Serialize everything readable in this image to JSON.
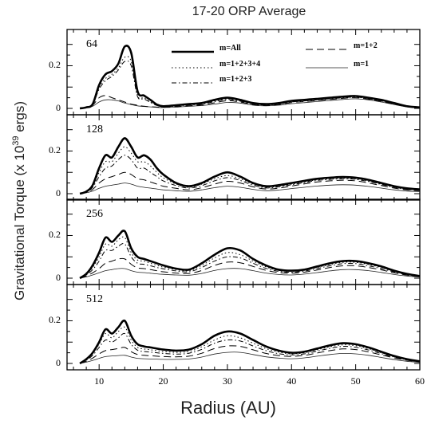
{
  "chart_data": {
    "type": "line",
    "title": "17-20 ORP Average",
    "xlabel": "Radius (AU)",
    "ylabel_main": "Gravitational Torque (x 10",
    "ylabel_sup": "39",
    "ylabel_tail": " ergs)",
    "xlim": [
      5,
      60
    ],
    "ylim": [
      0,
      0.34
    ],
    "x_ticks": [
      10,
      20,
      30,
      40,
      50,
      60
    ],
    "y_ticks": [
      0,
      0.2
    ],
    "y_tick_labels": [
      "0",
      "0.2"
    ],
    "legend": [
      {
        "name": "m=All",
        "style": "thick"
      },
      {
        "name": "m=1+2",
        "style": "longdash"
      },
      {
        "name": "m=1+2+3+4",
        "style": "dotted"
      },
      {
        "name": "m=1",
        "style": "thin"
      },
      {
        "name": "m=1+2+3",
        "style": "dashdot"
      }
    ],
    "x": [
      7,
      8,
      9,
      10,
      11,
      12,
      13,
      14,
      15,
      16,
      17,
      18,
      19,
      20,
      22,
      24,
      26,
      28,
      30,
      32,
      34,
      36,
      38,
      40,
      42,
      44,
      46,
      48,
      50,
      52,
      54,
      56,
      58,
      60
    ],
    "panels": [
      {
        "label": "64",
        "series": [
          {
            "name": "m=All",
            "values": [
              0.0,
              0.005,
              0.02,
              0.11,
              0.16,
              0.175,
              0.21,
              0.29,
              0.26,
              0.08,
              0.06,
              0.04,
              0.018,
              0.01,
              0.015,
              0.02,
              0.025,
              0.04,
              0.05,
              0.04,
              0.025,
              0.02,
              0.025,
              0.035,
              0.04,
              0.045,
              0.05,
              0.055,
              0.058,
              0.05,
              0.04,
              0.025,
              0.01,
              0.005
            ]
          },
          {
            "name": "m=1+2+3+4",
            "values": [
              0.0,
              0.005,
              0.02,
              0.1,
              0.14,
              0.16,
              0.19,
              0.24,
              0.22,
              0.06,
              0.05,
              0.03,
              0.015,
              0.008,
              0.012,
              0.018,
              0.022,
              0.035,
              0.045,
              0.036,
              0.022,
              0.018,
              0.022,
              0.032,
              0.037,
              0.042,
              0.047,
              0.052,
              0.055,
              0.047,
              0.037,
              0.023,
              0.009,
              0.004
            ]
          },
          {
            "name": "m=1+2+3",
            "values": [
              0.0,
              0.004,
              0.018,
              0.09,
              0.13,
              0.15,
              0.18,
              0.22,
              0.2,
              0.055,
              0.045,
              0.028,
              0.014,
              0.008,
              0.011,
              0.016,
              0.02,
              0.032,
              0.042,
              0.034,
              0.02,
              0.016,
              0.02,
              0.03,
              0.035,
              0.04,
              0.045,
              0.05,
              0.053,
              0.045,
              0.035,
              0.022,
              0.008,
              0.004
            ]
          },
          {
            "name": "m=1+2",
            "values": [
              0.0,
              0.004,
              0.015,
              0.05,
              0.06,
              0.05,
              0.04,
              0.03,
              0.02,
              0.015,
              0.01,
              0.008,
              0.006,
              0.005,
              0.008,
              0.012,
              0.016,
              0.026,
              0.036,
              0.03,
              0.018,
              0.014,
              0.018,
              0.027,
              0.032,
              0.037,
              0.042,
              0.047,
              0.05,
              0.043,
              0.033,
              0.02,
              0.008,
              0.003
            ]
          },
          {
            "name": "m=1",
            "values": [
              0.0,
              0.003,
              0.01,
              0.03,
              0.04,
              0.04,
              0.035,
              0.025,
              0.018,
              0.012,
              0.009,
              0.007,
              0.005,
              0.004,
              0.006,
              0.01,
              0.013,
              0.02,
              0.028,
              0.025,
              0.015,
              0.012,
              0.015,
              0.022,
              0.027,
              0.032,
              0.037,
              0.042,
              0.045,
              0.04,
              0.03,
              0.018,
              0.007,
              0.003
            ]
          }
        ]
      },
      {
        "label": "128",
        "series": [
          {
            "name": "m=All",
            "values": [
              0.0,
              0.01,
              0.04,
              0.12,
              0.18,
              0.17,
              0.22,
              0.26,
              0.22,
              0.17,
              0.18,
              0.16,
              0.12,
              0.09,
              0.05,
              0.035,
              0.05,
              0.08,
              0.1,
              0.08,
              0.05,
              0.035,
              0.04,
              0.05,
              0.06,
              0.07,
              0.075,
              0.078,
              0.075,
              0.065,
              0.05,
              0.035,
              0.025,
              0.02
            ]
          },
          {
            "name": "m=1+2+3+4",
            "values": [
              0.0,
              0.008,
              0.035,
              0.1,
              0.15,
              0.15,
              0.19,
              0.22,
              0.19,
              0.15,
              0.15,
              0.13,
              0.1,
              0.075,
              0.045,
              0.03,
              0.045,
              0.07,
              0.085,
              0.07,
              0.045,
              0.03,
              0.035,
              0.045,
              0.055,
              0.065,
              0.07,
              0.073,
              0.07,
              0.06,
              0.045,
              0.032,
              0.022,
              0.018
            ]
          },
          {
            "name": "m=1+2+3",
            "values": [
              0.0,
              0.007,
              0.03,
              0.08,
              0.12,
              0.13,
              0.16,
              0.18,
              0.16,
              0.12,
              0.12,
              0.1,
              0.08,
              0.06,
              0.038,
              0.026,
              0.038,
              0.06,
              0.075,
              0.062,
              0.04,
              0.027,
              0.032,
              0.042,
              0.052,
              0.062,
              0.067,
              0.07,
              0.067,
              0.057,
              0.043,
              0.03,
              0.02,
              0.016
            ]
          },
          {
            "name": "m=1+2",
            "values": [
              0.0,
              0.006,
              0.02,
              0.05,
              0.07,
              0.08,
              0.09,
              0.1,
              0.09,
              0.07,
              0.065,
              0.055,
              0.045,
              0.035,
              0.025,
              0.018,
              0.028,
              0.045,
              0.058,
              0.05,
              0.032,
              0.022,
              0.026,
              0.036,
              0.046,
              0.055,
              0.06,
              0.063,
              0.06,
              0.05,
              0.038,
              0.026,
              0.018,
              0.014
            ]
          },
          {
            "name": "m=1",
            "values": [
              0.0,
              0.004,
              0.012,
              0.025,
              0.035,
              0.04,
              0.045,
              0.05,
              0.045,
              0.035,
              0.03,
              0.026,
              0.022,
              0.018,
              0.014,
              0.011,
              0.018,
              0.028,
              0.035,
              0.03,
              0.02,
              0.014,
              0.017,
              0.024,
              0.03,
              0.036,
              0.04,
              0.042,
              0.04,
              0.034,
              0.026,
              0.018,
              0.012,
              0.01
            ]
          }
        ]
      },
      {
        "label": "256",
        "series": [
          {
            "name": "m=All",
            "values": [
              0.0,
              0.02,
              0.06,
              0.12,
              0.19,
              0.17,
              0.2,
              0.22,
              0.14,
              0.1,
              0.09,
              0.08,
              0.07,
              0.06,
              0.045,
              0.04,
              0.07,
              0.11,
              0.14,
              0.13,
              0.09,
              0.06,
              0.04,
              0.035,
              0.04,
              0.055,
              0.07,
              0.08,
              0.08,
              0.07,
              0.055,
              0.035,
              0.02,
              0.01
            ]
          },
          {
            "name": "m=1+2+3+4",
            "values": [
              0.0,
              0.018,
              0.05,
              0.1,
              0.16,
              0.15,
              0.18,
              0.19,
              0.12,
              0.085,
              0.08,
              0.07,
              0.06,
              0.052,
              0.04,
              0.035,
              0.06,
              0.095,
              0.12,
              0.11,
              0.08,
              0.053,
              0.036,
              0.032,
              0.037,
              0.05,
              0.064,
              0.074,
              0.074,
              0.064,
              0.05,
              0.032,
              0.018,
              0.009
            ]
          },
          {
            "name": "m=1+2+3",
            "values": [
              0.0,
              0.015,
              0.04,
              0.08,
              0.13,
              0.13,
              0.15,
              0.16,
              0.1,
              0.07,
              0.065,
              0.058,
              0.05,
              0.044,
              0.034,
              0.03,
              0.05,
              0.08,
              0.1,
              0.095,
              0.07,
              0.046,
              0.032,
              0.028,
              0.033,
              0.045,
              0.058,
              0.068,
              0.068,
              0.058,
              0.045,
              0.029,
              0.016,
              0.008
            ]
          },
          {
            "name": "m=1+2",
            "values": [
              0.0,
              0.01,
              0.025,
              0.045,
              0.07,
              0.08,
              0.09,
              0.09,
              0.065,
              0.048,
              0.045,
              0.04,
              0.035,
              0.03,
              0.024,
              0.022,
              0.036,
              0.06,
              0.075,
              0.072,
              0.055,
              0.037,
              0.026,
              0.023,
              0.028,
              0.038,
              0.05,
              0.058,
              0.058,
              0.05,
              0.039,
              0.025,
              0.014,
              0.007
            ]
          },
          {
            "name": "m=1",
            "values": [
              0.0,
              0.006,
              0.015,
              0.025,
              0.035,
              0.04,
              0.045,
              0.045,
              0.035,
              0.028,
              0.026,
              0.023,
              0.02,
              0.018,
              0.015,
              0.014,
              0.022,
              0.036,
              0.045,
              0.045,
              0.035,
              0.024,
              0.017,
              0.015,
              0.019,
              0.026,
              0.034,
              0.04,
              0.04,
              0.035,
              0.027,
              0.017,
              0.01,
              0.005
            ]
          }
        ]
      },
      {
        "label": "512",
        "series": [
          {
            "name": "m=All",
            "values": [
              0.0,
              0.02,
              0.05,
              0.1,
              0.16,
              0.14,
              0.17,
              0.2,
              0.13,
              0.09,
              0.08,
              0.075,
              0.07,
              0.065,
              0.06,
              0.065,
              0.09,
              0.13,
              0.15,
              0.14,
              0.11,
              0.08,
              0.06,
              0.05,
              0.055,
              0.07,
              0.085,
              0.095,
              0.09,
              0.075,
              0.055,
              0.035,
              0.02,
              0.01
            ]
          },
          {
            "name": "m=1+2+3+4",
            "values": [
              0.0,
              0.018,
              0.045,
              0.09,
              0.14,
              0.12,
              0.15,
              0.17,
              0.11,
              0.075,
              0.068,
              0.064,
              0.06,
              0.056,
              0.052,
              0.056,
              0.078,
              0.11,
              0.13,
              0.12,
              0.095,
              0.07,
              0.053,
              0.045,
              0.05,
              0.064,
              0.078,
              0.087,
              0.083,
              0.069,
              0.05,
              0.032,
              0.018,
              0.009
            ]
          },
          {
            "name": "m=1+2+3",
            "values": [
              0.0,
              0.015,
              0.038,
              0.075,
              0.11,
              0.1,
              0.12,
              0.14,
              0.09,
              0.062,
              0.056,
              0.053,
              0.05,
              0.047,
              0.044,
              0.048,
              0.066,
              0.095,
              0.11,
              0.105,
              0.082,
              0.06,
              0.046,
              0.04,
              0.045,
              0.058,
              0.071,
              0.08,
              0.076,
              0.063,
              0.046,
              0.03,
              0.017,
              0.008
            ]
          },
          {
            "name": "m=1+2",
            "values": [
              0.0,
              0.01,
              0.025,
              0.045,
              0.06,
              0.065,
              0.07,
              0.075,
              0.055,
              0.042,
              0.038,
              0.036,
              0.034,
              0.032,
              0.031,
              0.034,
              0.048,
              0.07,
              0.082,
              0.08,
              0.064,
              0.047,
              0.037,
              0.033,
              0.038,
              0.049,
              0.06,
              0.068,
              0.065,
              0.054,
              0.04,
              0.026,
              0.015,
              0.007
            ]
          },
          {
            "name": "m=1",
            "values": [
              0.0,
              0.006,
              0.014,
              0.024,
              0.032,
              0.035,
              0.037,
              0.038,
              0.03,
              0.024,
              0.022,
              0.021,
              0.02,
              0.019,
              0.019,
              0.021,
              0.03,
              0.044,
              0.052,
              0.052,
              0.042,
              0.031,
              0.025,
              0.022,
              0.026,
              0.034,
              0.042,
              0.047,
              0.045,
              0.038,
              0.028,
              0.018,
              0.01,
              0.005
            ]
          }
        ]
      }
    ]
  }
}
